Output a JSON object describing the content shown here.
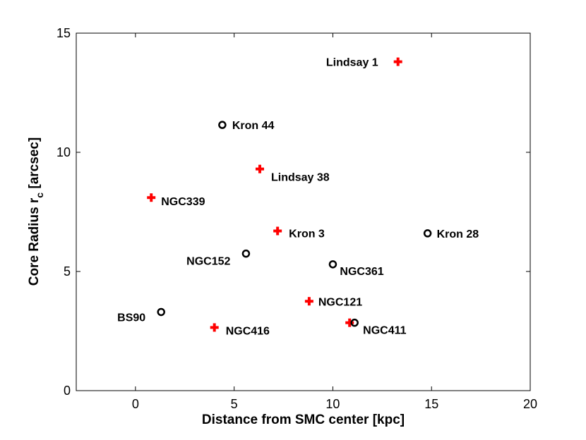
{
  "chart_data": {
    "type": "scatter",
    "xlabel": "Distance from SMC center [kpc]",
    "ylabel_main": "Core Radius r",
    "ylabel_sub": "c",
    "ylabel_unit": " [arcsec]",
    "xlim": [
      -3,
      20
    ],
    "ylim": [
      0,
      15
    ],
    "xticks": [
      0,
      5,
      10,
      15,
      20
    ],
    "yticks": [
      0,
      5,
      10,
      15
    ],
    "grid": false,
    "legend": "none",
    "colors": {
      "plus": "#ff0000",
      "circle": "#000000"
    },
    "series": [
      {
        "marker": "plus",
        "points": [
          {
            "label": "Lindsay 1",
            "x": 13.3,
            "y": 13.8
          },
          {
            "label": "Lindsay 38",
            "x": 6.3,
            "y": 9.3
          },
          {
            "label": "NGC339",
            "x": 0.8,
            "y": 8.1
          },
          {
            "label": "Kron 3",
            "x": 7.2,
            "y": 6.7
          },
          {
            "label": "NGC121",
            "x": 8.8,
            "y": 3.75
          },
          {
            "label": "NGC416",
            "x": 4.0,
            "y": 2.65
          },
          {
            "label": "",
            "x": 10.85,
            "y": 2.85
          }
        ]
      },
      {
        "marker": "circle",
        "points": [
          {
            "label": "Kron 44",
            "x": 4.4,
            "y": 11.15
          },
          {
            "label": "Kron 28",
            "x": 14.8,
            "y": 6.6
          },
          {
            "label": "NGC152",
            "x": 5.6,
            "y": 5.75
          },
          {
            "label": "NGC361",
            "x": 10.0,
            "y": 5.3
          },
          {
            "label": "BS90",
            "x": 1.3,
            "y": 3.3
          },
          {
            "label": "NGC411",
            "x": 11.1,
            "y": 2.85
          }
        ]
      }
    ]
  }
}
